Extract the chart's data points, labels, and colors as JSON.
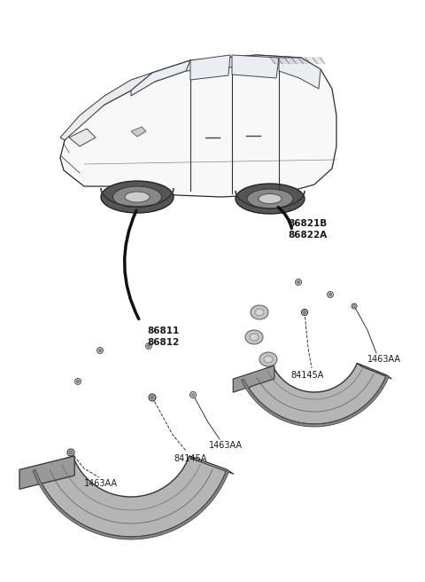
{
  "background_color": "#ffffff",
  "fig_width": 4.8,
  "fig_height": 6.56,
  "dpi": 100,
  "labels": {
    "front_guard_upper1": "86811",
    "front_guard_upper2": "86812",
    "front_fastener1": "84145A",
    "front_fastener2": "1463AA",
    "front_fastener3": "1463AA",
    "rear_guard_upper1": "86821B",
    "rear_guard_upper2": "86822A",
    "rear_fastener1": "84145A",
    "rear_fastener2": "1463AA"
  },
  "colors": {
    "guard_fill": "#b8b8b8",
    "guard_fill_dark": "#909090",
    "guard_fill_light": "#d0d0d0",
    "guard_edge": "#444444",
    "line_dark": "#222222",
    "text": "#1a1a1a",
    "white": "#ffffff",
    "car_fill": "#f5f5f5",
    "car_edge": "#333333"
  },
  "font_size": 7.0,
  "font_family": "DejaVu Sans"
}
